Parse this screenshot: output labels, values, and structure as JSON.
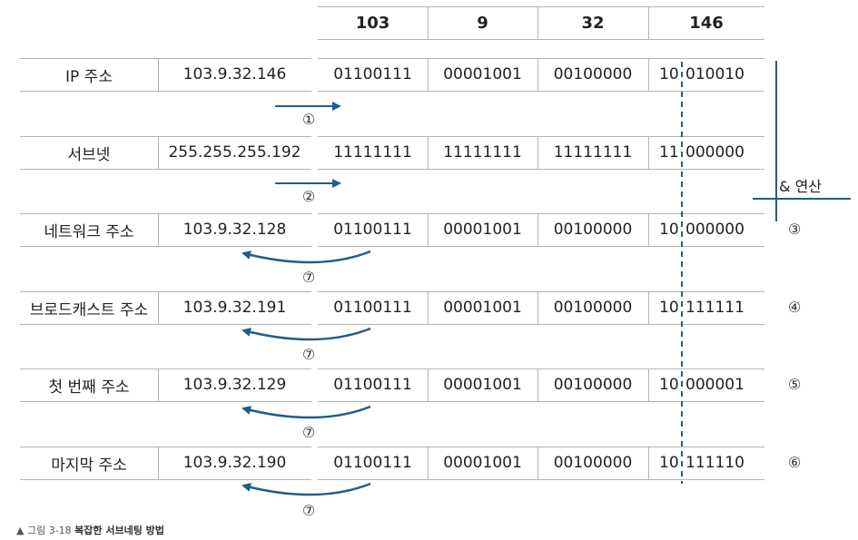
{
  "header": [
    "103",
    "9",
    "32",
    "146"
  ],
  "rows": [
    {
      "label": "IP 주소",
      "address": "103.9.32.146",
      "octets": [
        "01100111",
        "00001001",
        "00100000"
      ],
      "last_net": "10",
      "last_host": "010010",
      "marker": ""
    },
    {
      "label": "서브넷",
      "address": "255.255.255.192",
      "octets": [
        "11111111",
        "11111111",
        "11111111"
      ],
      "last_net": "11",
      "last_host": "000000",
      "marker": ""
    },
    {
      "label": "네트워크 주소",
      "address": "103.9.32.128",
      "octets": [
        "01100111",
        "00001001",
        "00100000"
      ],
      "last_net": "10",
      "last_host": "000000",
      "marker": "③"
    },
    {
      "label": "브로드캐스트 주소",
      "address": "103.9.32.191",
      "octets": [
        "01100111",
        "00001001",
        "00100000"
      ],
      "last_net": "10",
      "last_host": "111111",
      "marker": "④"
    },
    {
      "label": "첫 번째 주소",
      "address": "103.9.32.129",
      "octets": [
        "01100111",
        "00001001",
        "00100000"
      ],
      "last_net": "10",
      "last_host": "000001",
      "marker": "⑤"
    },
    {
      "label": "마지막 주소",
      "address": "103.9.32.190",
      "octets": [
        "01100111",
        "00001001",
        "00100000"
      ],
      "last_net": "10",
      "last_host": "111110",
      "marker": "⑥"
    }
  ],
  "steps": {
    "one": "①",
    "two": "②",
    "seven": "⑦"
  },
  "operation_label": "& 연산",
  "caption": {
    "marker": "▲",
    "figure": "그림 3-18",
    "title": "복잡한 서브네팅 방법"
  },
  "colors": {
    "arrow": "#1f5e8c",
    "grid": "#b4b4b4"
  }
}
